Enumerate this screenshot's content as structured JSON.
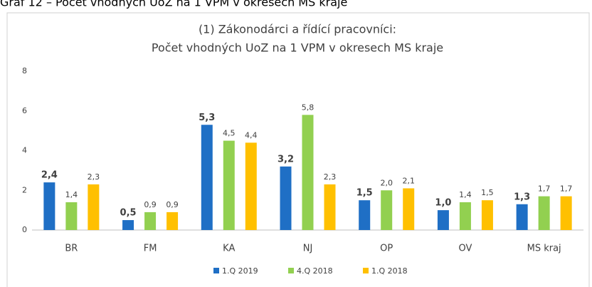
{
  "caption": "Graf 12 – Počet vhodných UoZ na 1 VPM v okresech MS kraje",
  "chart_data": {
    "type": "bar",
    "title": [
      "(1) Zákonodárci a řídící pracovníci:",
      "Počet vhodných UoZ na 1 VPM v okresech MS kraje"
    ],
    "categories": [
      "BR",
      "FM",
      "KA",
      "NJ",
      "OP",
      "OV",
      "MS kraj"
    ],
    "series": [
      {
        "name": "1.Q 2019",
        "color": "#1f6fc5",
        "values": [
          2.4,
          0.5,
          5.3,
          3.2,
          1.5,
          1.0,
          1.3
        ],
        "value_labels": [
          "2,4",
          "0,5",
          "5,3",
          "3,2",
          "1,5",
          "1,0",
          "1,3"
        ]
      },
      {
        "name": "4.Q 2018",
        "color": "#92d050",
        "values": [
          1.4,
          0.9,
          4.5,
          5.8,
          2.0,
          1.4,
          1.7
        ],
        "value_labels": [
          "1,4",
          "0,9",
          "4,5",
          "5,8",
          "2,0",
          "1,4",
          "1,7"
        ]
      },
      {
        "name": "1.Q 2018",
        "color": "#ffc000",
        "values": [
          2.3,
          0.9,
          4.4,
          2.3,
          2.1,
          1.5,
          1.7
        ],
        "value_labels": [
          "2,3",
          "0,9",
          "4,4",
          "2,3",
          "2,1",
          "1,5",
          "1,7"
        ]
      }
    ],
    "ylim": [
      0,
      8
    ],
    "yticks": [
      0,
      2,
      4,
      6,
      8
    ],
    "grid": false,
    "legend": "bottom"
  }
}
